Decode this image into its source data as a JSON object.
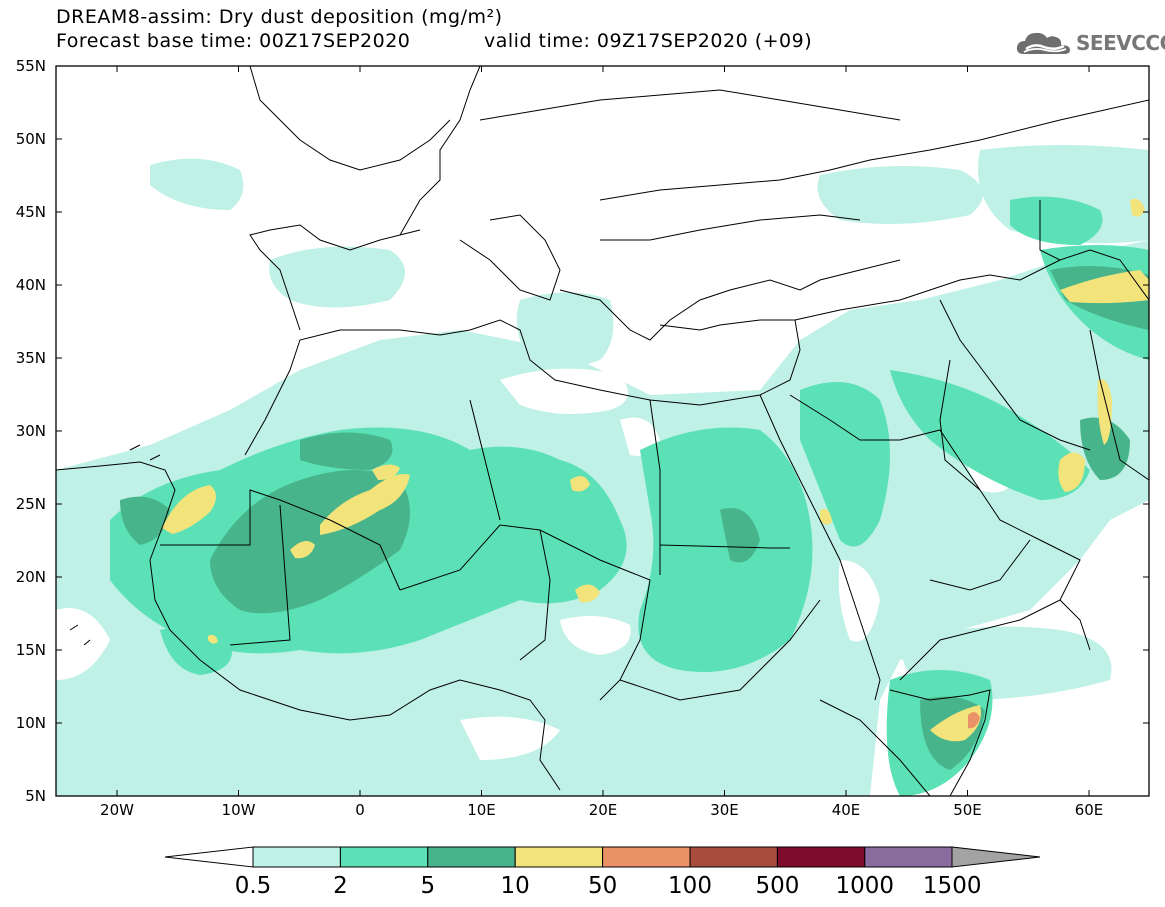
{
  "header": {
    "title": "DREAM8-assim: Dry dust deposition (mg/m²)",
    "base_time": "Forecast base time: 00Z17SEP2020",
    "valid_time": "valid time: 09Z17SEP2020 (+09)"
  },
  "logo": {
    "text": "SEEVCCC",
    "icon": "cloud-icon"
  },
  "map": {
    "lat_labels": [
      "55N",
      "50N",
      "45N",
      "40N",
      "35N",
      "30N",
      "25N",
      "20N",
      "15N",
      "10N",
      "5N"
    ],
    "lon_labels": [
      "20W",
      "10W",
      "0",
      "10E",
      "20E",
      "30E",
      "40E",
      "50E",
      "60E"
    ]
  },
  "colorbar": {
    "labels": [
      "0.5",
      "2",
      "5",
      "10",
      "50",
      "100",
      "500",
      "1000",
      "1500"
    ],
    "colors": [
      "#bff1e6",
      "#5ce1b6",
      "#48b48c",
      "#f2e37a",
      "#eb9168",
      "#a94c40",
      "#7f0c2c",
      "#8b6c9e",
      "#a3a3a3"
    ]
  }
}
